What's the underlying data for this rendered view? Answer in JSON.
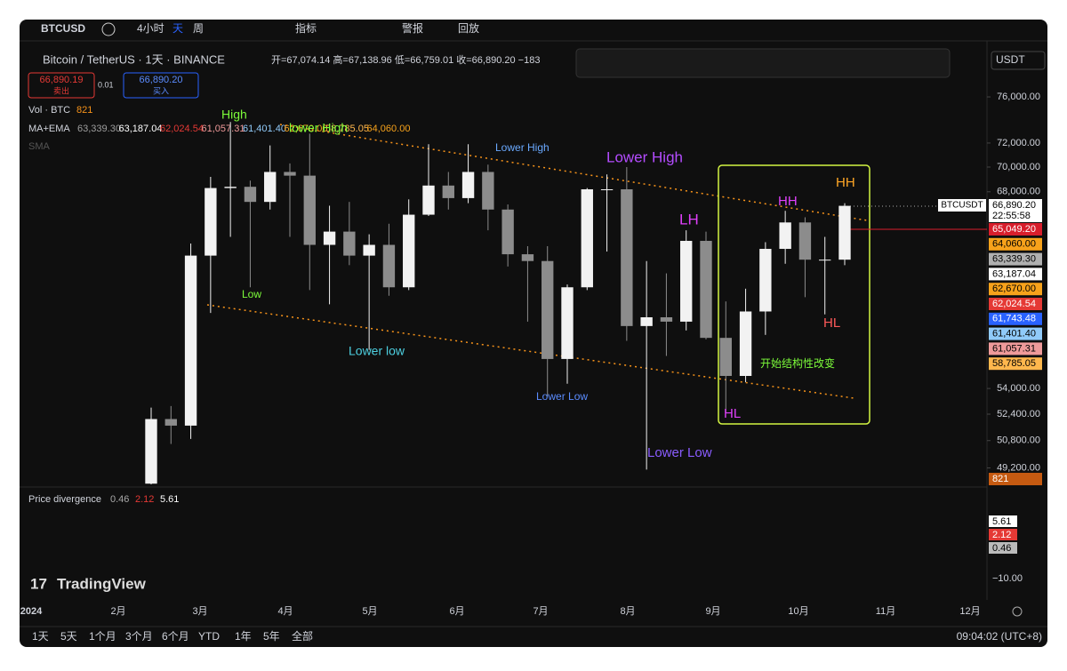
{
  "toolbar": {
    "symbol": "BTCUSD",
    "intervals": [
      "4小时",
      "天",
      "周"
    ],
    "items": [
      "指标",
      "警报",
      "回放"
    ]
  },
  "legend": {
    "title": "Bitcoin / TetherUS · 1天 · BINANCE",
    "ohlc": "开=67,074.14 高=67,138.96 低=66,759.01 收=66,890.20 −183",
    "sell_price": "66,890.19",
    "sell": "卖出",
    "spread": "0.01",
    "buy_price": "66,890.20",
    "buy": "买入",
    "vol_label": "Vol · BTC",
    "vol_value": "821",
    "ma_label": "MA+EMA",
    "ma_values": [
      "63,339.30",
      "63,187.04",
      "62,024.54",
      "61,057.31",
      "61,401.40",
      "62,670.00",
      "58,785.05",
      "64,060.00"
    ],
    "sma": "SMA",
    "currency": "USDT"
  },
  "chart_data": {
    "type": "candlestick",
    "log_scale": true,
    "up_color": "#f2f2f2",
    "down_color": "#8c8c8c",
    "categories": [
      null,
      null,
      null,
      null,
      null,
      null,
      null,
      null,
      null,
      null,
      null,
      null,
      null,
      null,
      null,
      null,
      null,
      null,
      null,
      null,
      null,
      null,
      null,
      null,
      null,
      null,
      null,
      null,
      null,
      null,
      null,
      null,
      null,
      null,
      null,
      null
    ],
    "open": [
      48300,
      52100,
      51700,
      63100,
      68300,
      68400,
      67200,
      69600,
      69300,
      63900,
      64900,
      63100,
      63900,
      60800,
      66200,
      68500,
      67500,
      69600,
      66600,
      63200,
      62700,
      55900,
      60800,
      68200,
      68200,
      58100,
      58700,
      58400,
      64200,
      57300,
      54800,
      59100,
      63600,
      65600,
      62800,
      62800
    ],
    "high": [
      52800,
      52900,
      64000,
      69200,
      73800,
      68900,
      71800,
      70300,
      72800,
      66900,
      67200,
      64700,
      65500,
      67400,
      71900,
      69600,
      71900,
      70200,
      67000,
      63800,
      63800,
      61000,
      68300,
      69400,
      70000,
      62700,
      61800,
      65000,
      64900,
      59800,
      60700,
      64100,
      66500,
      66000,
      64500,
      67100
    ],
    "low": [
      47700,
      50600,
      50900,
      59000,
      64500,
      60800,
      66600,
      64500,
      60600,
      59600,
      62400,
      56500,
      60200,
      60600,
      66100,
      66600,
      67100,
      65000,
      62300,
      58400,
      53500,
      54300,
      60600,
      63400,
      57100,
      49100,
      56100,
      57800,
      57200,
      52500,
      54400,
      57500,
      62500,
      60100,
      58900,
      62400
    ],
    "close": [
      52100,
      51700,
      63100,
      68300,
      68400,
      67200,
      69600,
      69300,
      63900,
      64900,
      63100,
      63900,
      60800,
      66200,
      68500,
      67500,
      69600,
      66600,
      63200,
      62700,
      55900,
      60800,
      68200,
      68200,
      58100,
      58700,
      58400,
      64200,
      57300,
      54800,
      59100,
      63600,
      65600,
      62800,
      62800,
      66890.2
    ],
    "ylim": [
      48260,
      80400
    ],
    "yticks": [
      {
        "value": 76000,
        "label": "76,000.00"
      },
      {
        "value": 72000,
        "label": "72,000.00"
      },
      {
        "value": 70000,
        "label": "70,000.00"
      },
      {
        "value": 68000,
        "label": "68,000.00"
      },
      {
        "value": 54000,
        "label": "54,000.00"
      },
      {
        "value": 52400,
        "label": "52,400.00"
      },
      {
        "value": 50800,
        "label": "50,800.00"
      },
      {
        "value": 49200,
        "label": "49,200.00"
      }
    ],
    "months": [
      "2024",
      "2月",
      "3月",
      "4月",
      "5月",
      "6月",
      "7月",
      "8月",
      "9月",
      "10月",
      "11月",
      "12月"
    ]
  },
  "price_tags": [
    {
      "label": "BTCUSDT",
      "color": "#ffffff"
    },
    {
      "label": "66,890.20",
      "color": "#ffffff"
    },
    {
      "label": "22:55:58",
      "color": "#ffffff"
    },
    {
      "label": "65,049.20",
      "color": "#d81e2c"
    },
    {
      "label": "64,060.00",
      "color": "#f7a21b"
    },
    {
      "label": "63,339.30",
      "color": "#b0b0b0"
    },
    {
      "label": "63,187.04",
      "color": "#ffffff"
    },
    {
      "label": "62,670.00",
      "color": "#f7a21b"
    },
    {
      "label": "62,024.54",
      "color": "#e53935"
    },
    {
      "label": "61,743.48",
      "color": "#2962ff"
    },
    {
      "label": "61,401.40",
      "color": "#90caf9"
    },
    {
      "label": "61,057.31",
      "color": "#ef9a9a"
    },
    {
      "label": "58,785.05",
      "color": "#ffb74d"
    },
    {
      "label": "821",
      "color": "#c55a11"
    }
  ],
  "annotations": [
    "High",
    "Low",
    "lower High",
    "Lower High",
    "Lower High",
    "LH",
    "HH",
    "HH",
    "HL",
    "HL",
    "Lower low",
    "Lower Low",
    "Lower Low",
    "开始结构性改变"
  ],
  "indicator": {
    "name": "Price divergence",
    "values": [
      "0.46",
      "2.12",
      "5.61"
    ],
    "axis": [
      "5.61",
      "2.12",
      "0.46",
      "−10.00"
    ]
  },
  "brand": "TradingView",
  "bottom": {
    "ranges": [
      "1天",
      "5天",
      "1个月",
      "3个月",
      "6个月",
      "YTD",
      "1年",
      "5年",
      "全部"
    ],
    "time": "09:04:02 (UTC+8)"
  }
}
